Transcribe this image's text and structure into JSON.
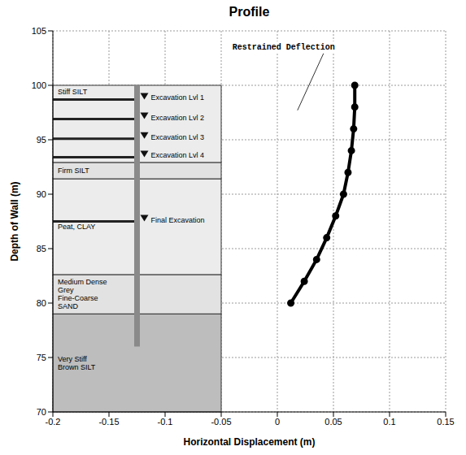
{
  "chart_data": {
    "type": "line",
    "title": "Profile",
    "x_label": "Horizontal Displacement (m)",
    "y_label": "Depth of Wall (m)",
    "xlim": [
      -0.2,
      0.15
    ],
    "ylim": [
      70,
      105
    ],
    "xticks": [
      -0.2,
      -0.15,
      -0.1,
      -0.05,
      0,
      0.05,
      0.1,
      0.15
    ],
    "yticks": [
      70,
      75,
      80,
      85,
      90,
      95,
      100,
      105
    ],
    "grid": true,
    "series": [
      {
        "color": "#000000",
        "marker": "circle",
        "line_style": "solid",
        "x": [
          0.069,
          0.069,
          0.068,
          0.066,
          0.063,
          0.059,
          0.052,
          0.044,
          0.035,
          0.024,
          0.012
        ],
        "y": [
          100,
          98,
          96,
          94,
          92,
          90,
          88,
          86,
          84,
          82,
          80
        ]
      }
    ],
    "annotation": {
      "text": "Restrained Deflection",
      "x": -0.04,
      "y": 103.3
    },
    "soil_extent": [
      -0.2,
      -0.05
    ],
    "layers": [
      {
        "label": "Stiff SILT",
        "top": 100,
        "bottom": 92.9,
        "color": "#ececec"
      },
      {
        "label": "Firm SILT",
        "top": 92.9,
        "bottom": 91.4,
        "color": "#e2e2e2"
      },
      {
        "label": "Peat, CLAY",
        "top": 91.4,
        "bottom": 82.6,
        "color": "#ececec"
      },
      {
        "label": "Medium Dense Grey Fine-Coarse SAND",
        "top": 82.6,
        "bottom": 79,
        "color": "#e2e2e2"
      },
      {
        "label": "Very Stiff Brown SILT",
        "top": 79,
        "bottom": 70,
        "color": "#bdbdbd"
      }
    ],
    "excavation_levels": [
      {
        "label": "Excavation Lvl 1",
        "depth": 98.7
      },
      {
        "label": "Excavation Lvl 2",
        "depth": 96.9
      },
      {
        "label": "Excavation Lvl 3",
        "depth": 95.1
      },
      {
        "label": "Excavation Lvl 4",
        "depth": 93.4
      },
      {
        "label": "Final Excavation",
        "depth": 87.5
      }
    ],
    "wall": {
      "x": -0.125,
      "top": 100,
      "bottom": 76
    }
  }
}
